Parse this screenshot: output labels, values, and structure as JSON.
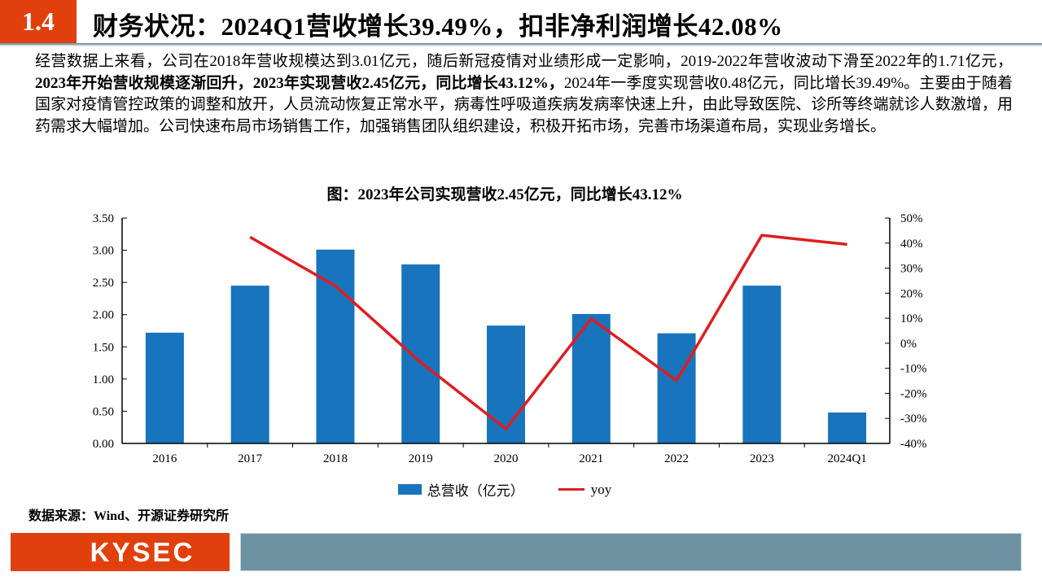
{
  "header": {
    "section_no": "1.4",
    "title": "财务状况：2024Q1营收增长39.49%，扣非净利润增长42.08%"
  },
  "paragraph": {
    "seg1": "经营数据上来看，公司在2018年营收规模达到3.01亿元，随后新冠疫情对业绩形成一定影响，2019-2022年营收波动下滑至2022年的1.71亿元，",
    "seg2_bold": "2023年开始营收规模逐渐回升，2023年实现营收2.45亿元，同比增长43.12%，",
    "seg3": "2024年一季度实现营收0.48亿元，同比增长39.49%。主要由于随着国家对疫情管控政策的调整和放开，人员流动恢复正常水平，病毒性呼吸道疾病发病率快速上升，由此导致医院、诊所等终端就诊人数激增，用药需求大幅增加。公司快速布局市场销售工作，加强销售团队组织建设，积极开拓市场，完善市场渠道布局，实现业务增长。"
  },
  "chart_data": {
    "type": "bar",
    "subtype": "combo-bar-line",
    "title": "图：2023年公司实现营收2.45亿元，同比增长43.12%",
    "categories": [
      "2016",
      "2017",
      "2018",
      "2019",
      "2020",
      "2021",
      "2022",
      "2023",
      "2024Q1"
    ],
    "series": [
      {
        "name": "总营收（亿元）",
        "type": "bar",
        "axis": "left",
        "color": "#1874BC",
        "values": [
          1.72,
          2.45,
          3.01,
          2.78,
          1.83,
          2.01,
          1.71,
          2.45,
          0.48
        ]
      },
      {
        "name": "yoy",
        "type": "line",
        "axis": "right",
        "color": "#DD1E20",
        "values": [
          null,
          42.4,
          22.9,
          -7.6,
          -34.2,
          9.8,
          -14.9,
          43.12,
          39.49
        ]
      }
    ],
    "left_axis": {
      "min": 0,
      "max": 3.5,
      "step": 0.5,
      "tick_labels": [
        "0.00",
        "0.50",
        "1.00",
        "1.50",
        "2.00",
        "2.50",
        "3.00",
        "3.50"
      ]
    },
    "right_axis": {
      "min": -40,
      "max": 50,
      "step": 10,
      "tick_labels": [
        "-40%",
        "-30%",
        "-20%",
        "-10%",
        "0%",
        "10%",
        "20%",
        "30%",
        "40%",
        "50%"
      ]
    },
    "legend_position": "bottom",
    "grid": false
  },
  "source": "数据来源：Wind、开源证券研究所",
  "footer": {
    "logo_text": "KYSEC"
  },
  "colors": {
    "accent_orange": "#E1400C",
    "bar_blue": "#1874BC",
    "line_red": "#DD1E20",
    "footer_gray_blue": "#6E92A2",
    "header_rule": "#7E98A2"
  }
}
